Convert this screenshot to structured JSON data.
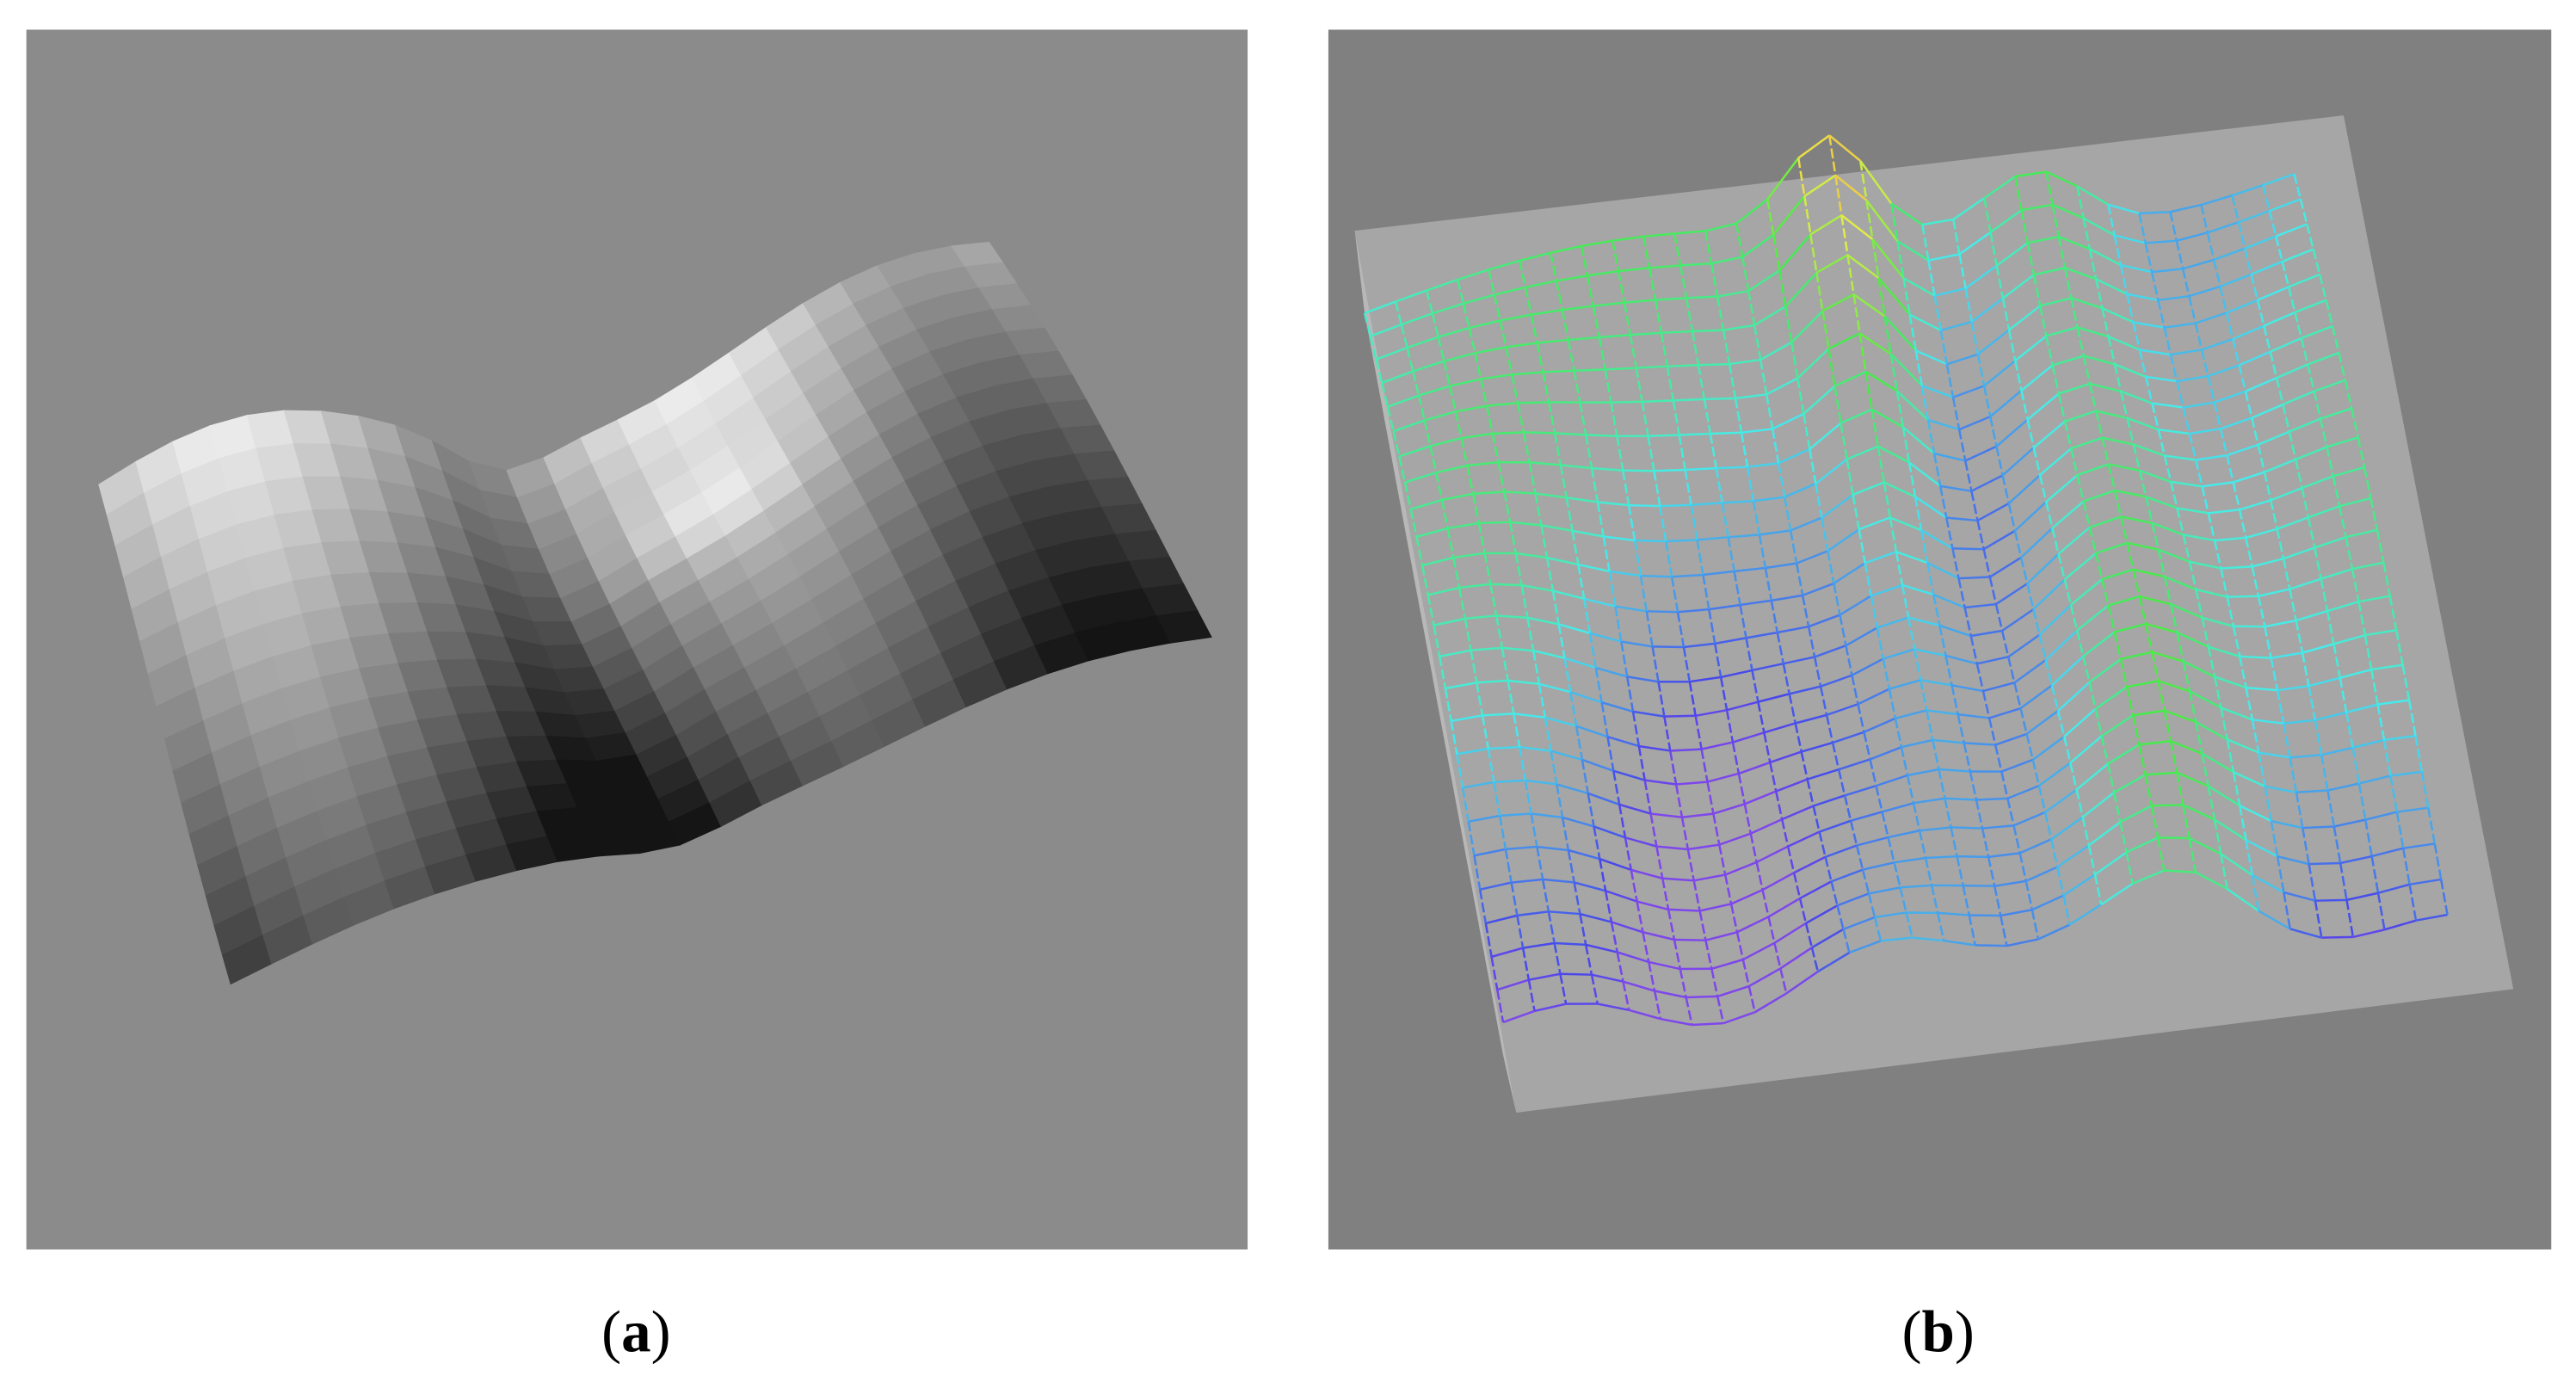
{
  "captions": [
    {
      "open": "(",
      "label": "a",
      "close": ")"
    },
    {
      "open": "(",
      "label": "b",
      "close": ")"
    }
  ]
}
